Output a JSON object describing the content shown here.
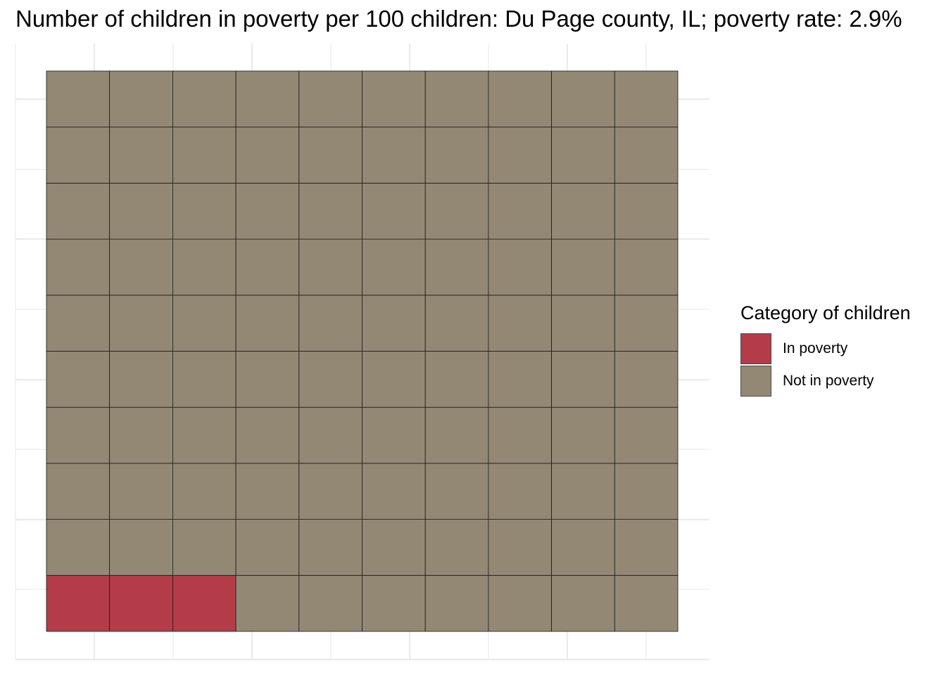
{
  "title": "Number of children in poverty per 100 children: Du Page county, IL; poverty rate: 2.9%",
  "chart_data": {
    "type": "waffle",
    "title": "Number of children in poverty per 100 children: Du Page county, IL; poverty rate: 2.9%",
    "xlabel": "",
    "ylabel": "",
    "grid": true,
    "rows": 10,
    "columns": 10,
    "total": 100,
    "categories": [
      "In poverty",
      "Not in poverty"
    ],
    "values": [
      3,
      97
    ],
    "colors": [
      "#b33c48",
      "#938874"
    ],
    "legend": {
      "title": "Category of children",
      "placement": "right",
      "entries": [
        {
          "label": "In poverty",
          "color": "#b33c48"
        },
        {
          "label": "Not in poverty",
          "color": "#938874"
        }
      ]
    }
  }
}
